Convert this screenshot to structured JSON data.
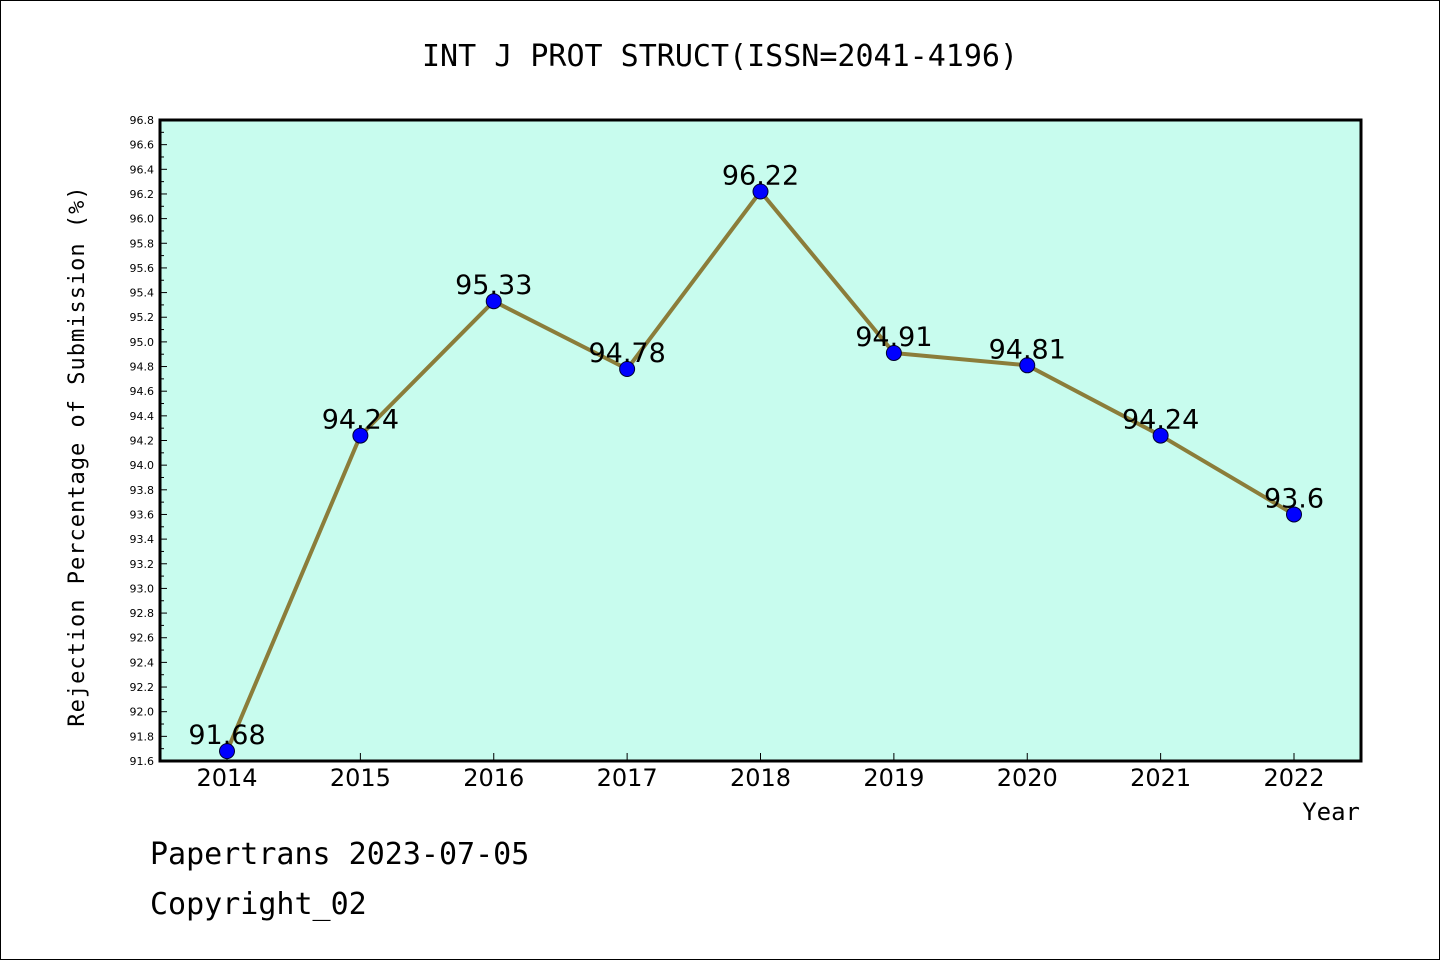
{
  "chart_data": {
    "type": "line",
    "title": "INT J PROT STRUCT(ISSN=2041-4196)",
    "xlabel": "Year",
    "ylabel": "Rejection Percentage of Submission (%)",
    "categories": [
      "2014",
      "2015",
      "2016",
      "2017",
      "2018",
      "2019",
      "2020",
      "2021",
      "2022"
    ],
    "values": [
      91.68,
      94.24,
      95.33,
      94.78,
      96.22,
      94.91,
      94.81,
      94.24,
      93.6
    ],
    "data_labels": [
      "91.68",
      "94.24",
      "95.33",
      "94.78",
      "96.22",
      "94.91",
      "94.81",
      "94.24",
      "93.6"
    ],
    "ylim": [
      91.6,
      96.8
    ],
    "yticks": [
      "91.6",
      "91.8",
      "92.0",
      "92.2",
      "92.4",
      "92.6",
      "92.8",
      "93.0",
      "93.2",
      "93.4",
      "93.6",
      "93.8",
      "94.0",
      "94.2",
      "94.4",
      "94.6",
      "94.8",
      "95.0",
      "95.2",
      "95.4",
      "95.6",
      "95.8",
      "96.0",
      "96.2",
      "96.4",
      "96.6",
      "96.8"
    ],
    "grid": false,
    "colors": {
      "background": "#c8fcee",
      "line": "#8b7d3a",
      "marker": "#0000ff"
    }
  },
  "footer": {
    "line1": "Papertrans 2023-07-05",
    "line2": "Copyright_02"
  }
}
